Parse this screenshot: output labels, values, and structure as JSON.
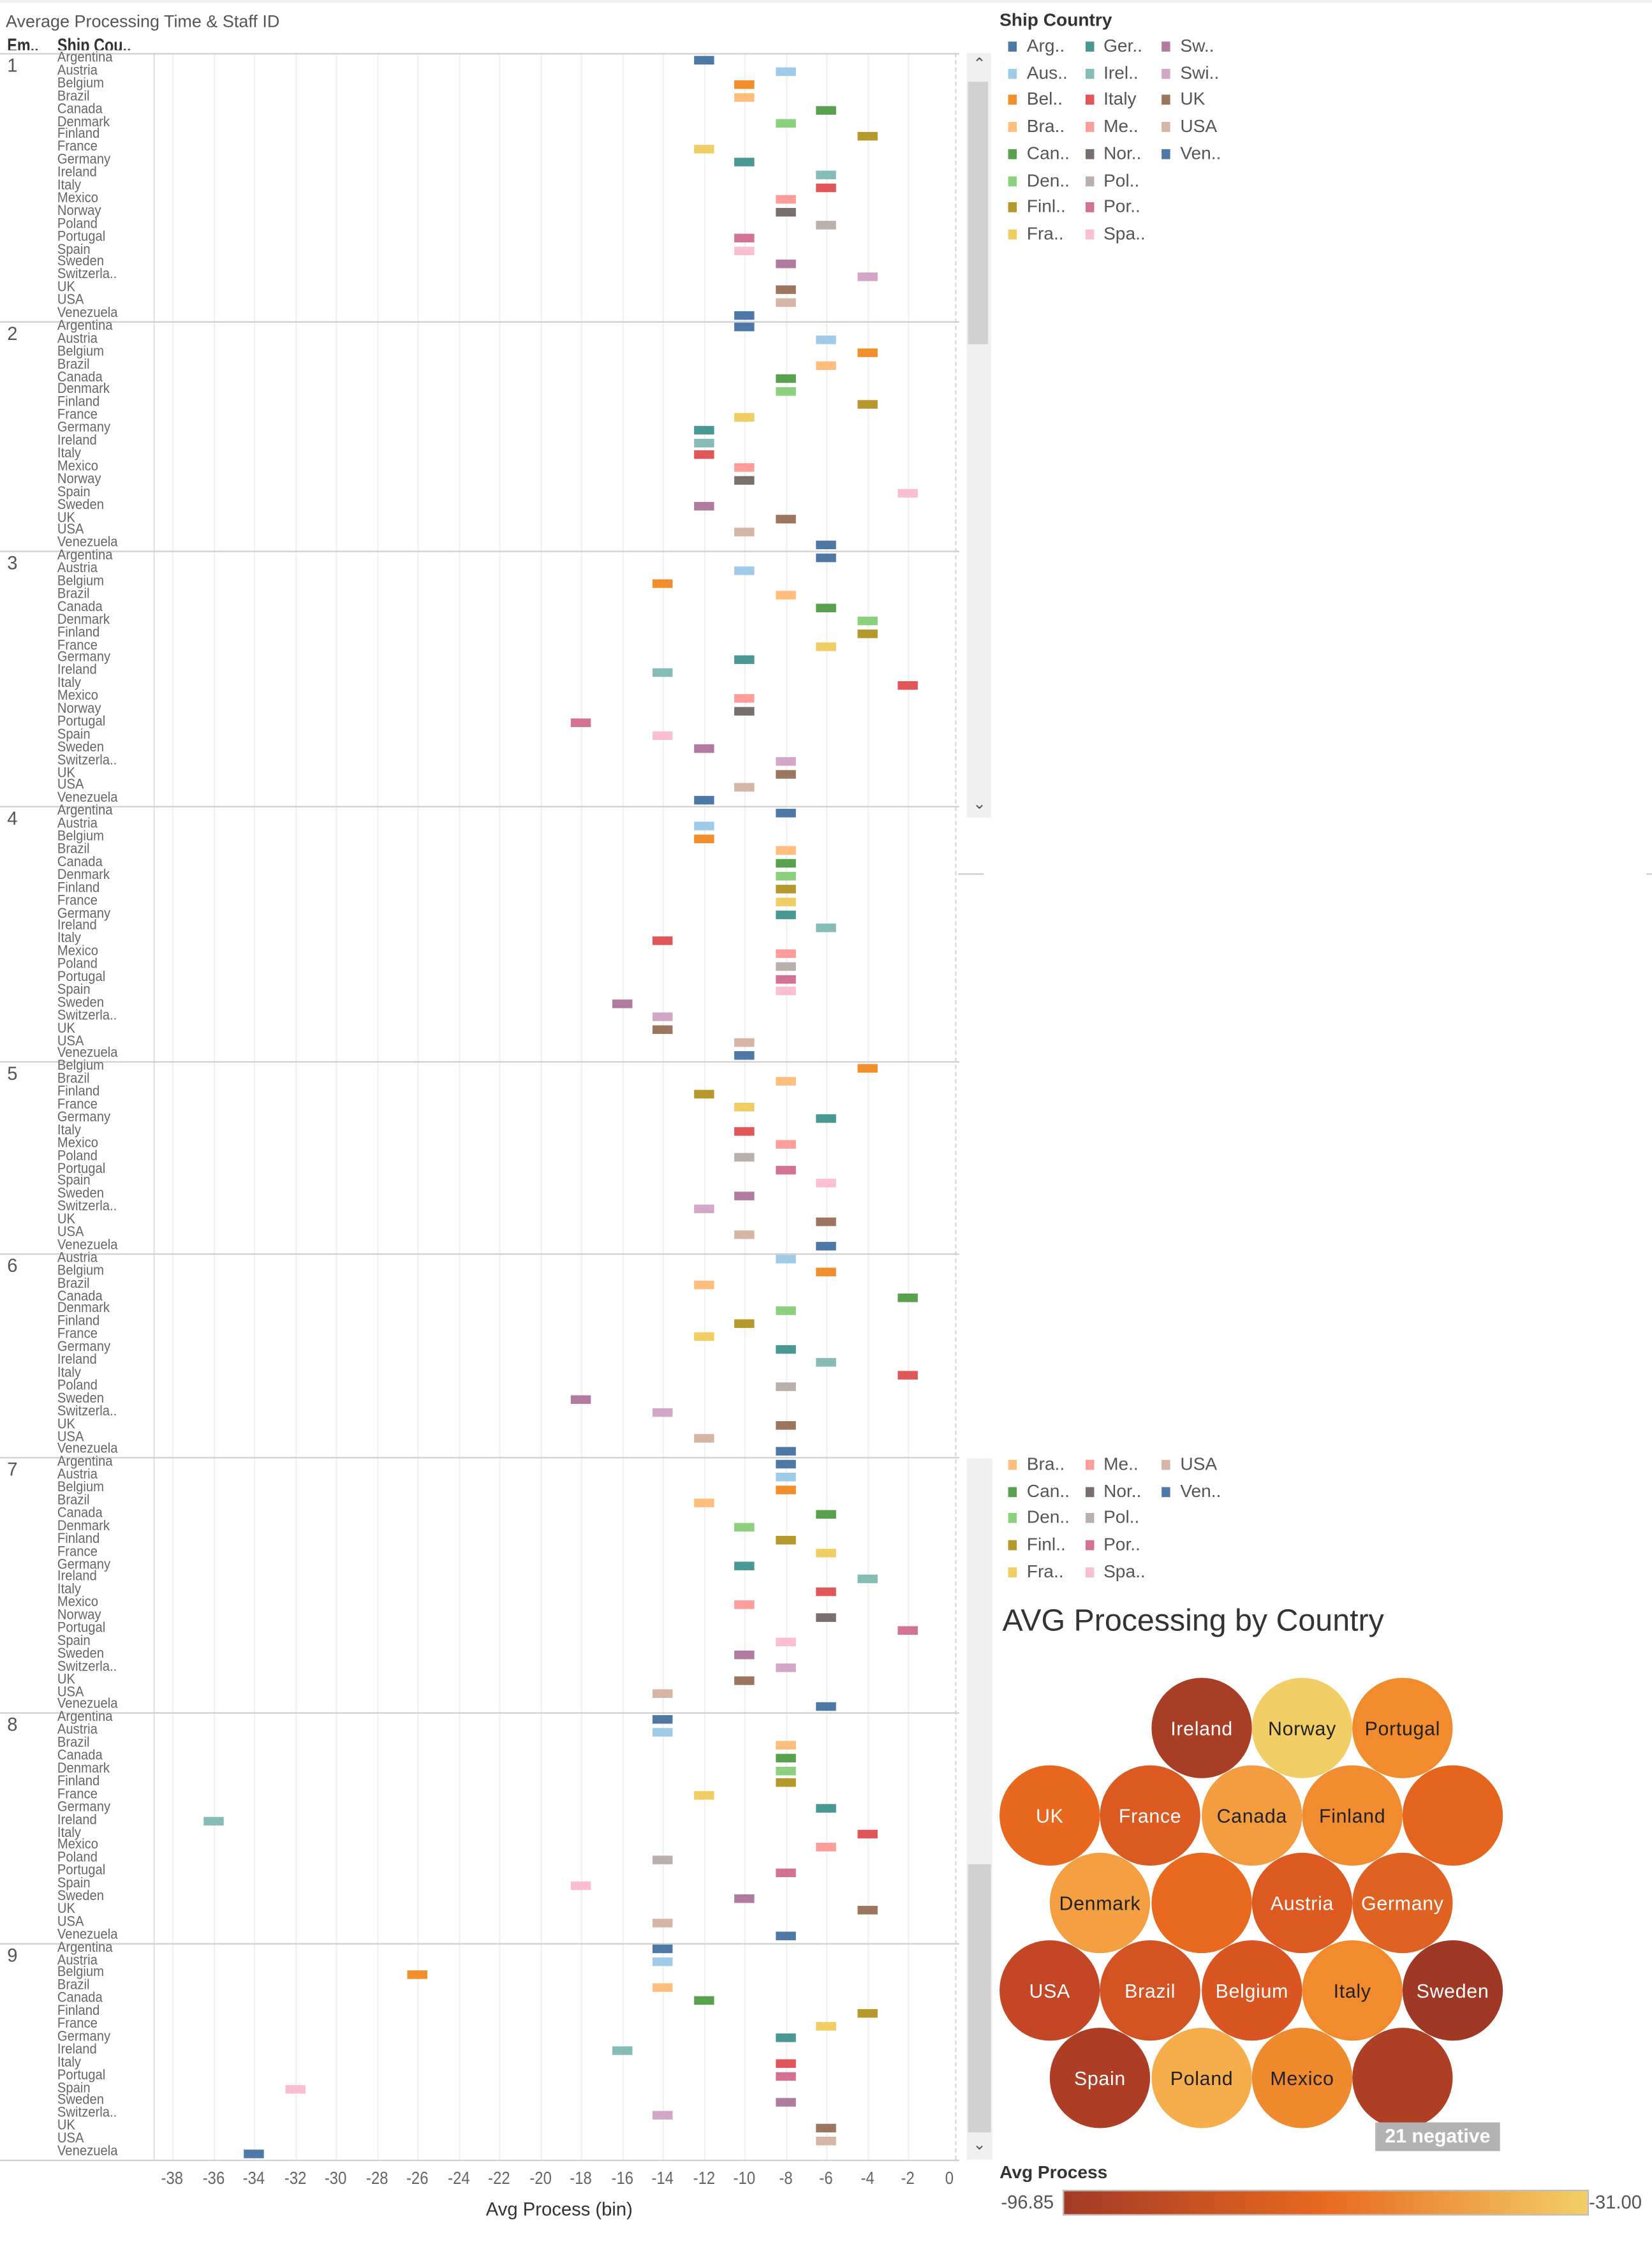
{
  "header": {
    "title": "Average Processing Time & Staff ID",
    "col_employee": "Em..",
    "col_country": "Ship Cou.."
  },
  "legend": {
    "title": "Ship Country",
    "items": [
      {
        "label": "Arg..",
        "color": "#4e79a7"
      },
      {
        "label": "Aus..",
        "color": "#a0cbe8"
      },
      {
        "label": "Bel..",
        "color": "#f28e2b"
      },
      {
        "label": "Bra..",
        "color": "#ffbe7d"
      },
      {
        "label": "Can..",
        "color": "#59a14f"
      },
      {
        "label": "Den..",
        "color": "#8cd17d"
      },
      {
        "label": "Finl..",
        "color": "#b6992d"
      },
      {
        "label": "Fra..",
        "color": "#f1ce63"
      },
      {
        "label": "Ger..",
        "color": "#499894"
      },
      {
        "label": "Irel..",
        "color": "#86bcb6"
      },
      {
        "label": "Italy",
        "color": "#e15759"
      },
      {
        "label": "Me..",
        "color": "#ff9d9a"
      },
      {
        "label": "Nor..",
        "color": "#79706e"
      },
      {
        "label": "Pol..",
        "color": "#bab0ac"
      },
      {
        "label": "Por..",
        "color": "#d37295"
      },
      {
        "label": "Spa..",
        "color": "#fabfd2"
      },
      {
        "label": "Sw..",
        "color": "#b07aa1"
      },
      {
        "label": "Swi..",
        "color": "#d4a6c8"
      },
      {
        "label": "UK",
        "color": "#9d7660"
      },
      {
        "label": "USA",
        "color": "#d7b5a6"
      },
      {
        "label": "Ven..",
        "color": "#4e79a7"
      }
    ]
  },
  "legend_partial": {
    "items": [
      {
        "label": "Bra..",
        "color": "#ffbe7d"
      },
      {
        "label": "Can..",
        "color": "#59a14f"
      },
      {
        "label": "Den..",
        "color": "#8cd17d"
      },
      {
        "label": "Finl..",
        "color": "#b6992d"
      },
      {
        "label": "Fra..",
        "color": "#f1ce63"
      },
      {
        "label": "Me..",
        "color": "#ff9d9a"
      },
      {
        "label": "Nor..",
        "color": "#79706e"
      },
      {
        "label": "Pol..",
        "color": "#bab0ac"
      },
      {
        "label": "Por..",
        "color": "#d37295"
      },
      {
        "label": "Spa..",
        "color": "#fabfd2"
      },
      {
        "label": "USA",
        "color": "#d7b5a6"
      },
      {
        "label": "Ven..",
        "color": "#4e79a7"
      }
    ]
  },
  "country_colors": {
    "Argentina": "#4e79a7",
    "Austria": "#a0cbe8",
    "Belgium": "#f28e2b",
    "Brazil": "#ffbe7d",
    "Canada": "#59a14f",
    "Denmark": "#8cd17d",
    "Finland": "#b6992d",
    "France": "#f1ce63",
    "Germany": "#499894",
    "Ireland": "#86bcb6",
    "Italy": "#e15759",
    "Mexico": "#ff9d9a",
    "Norway": "#79706e",
    "Poland": "#bab0ac",
    "Portugal": "#d37295",
    "Spain": "#fabfd2",
    "Sweden": "#b07aa1",
    "Switzerla..": "#d4a6c8",
    "UK": "#9d7660",
    "USA": "#d7b5a6",
    "Venezuela": "#4e79a7"
  },
  "chart_data": [
    {
      "type": "scatter",
      "title": "Average Processing Time & Staff ID",
      "xlabel": "Avg Process (bin)",
      "xlim": [
        -38,
        0
      ],
      "xticks": [
        "-38",
        "-36",
        "-34",
        "-32",
        "-30",
        "-28",
        "-26",
        "-24",
        "-22",
        "-20",
        "-18",
        "-16",
        "-14",
        "-12",
        "-10",
        "-8",
        "-6",
        "-4",
        "-2",
        "0"
      ],
      "grid": true,
      "rows_by": [
        "Employee",
        "Ship Country"
      ],
      "panels": [
        {
          "employee": "1",
          "rows": [
            [
              "Argentina",
              -12
            ],
            [
              "Austria",
              -8
            ],
            [
              "Belgium",
              -10
            ],
            [
              "Brazil",
              -10
            ],
            [
              "Canada",
              -6
            ],
            [
              "Denmark",
              -8
            ],
            [
              "Finland",
              -4
            ],
            [
              "France",
              -12
            ],
            [
              "Germany",
              -10
            ],
            [
              "Ireland",
              -6
            ],
            [
              "Italy",
              -6
            ],
            [
              "Mexico",
              -8
            ],
            [
              "Norway",
              -8
            ],
            [
              "Poland",
              -6
            ],
            [
              "Portugal",
              -10
            ],
            [
              "Spain",
              -10
            ],
            [
              "Sweden",
              -8
            ],
            [
              "Switzerla..",
              -4
            ],
            [
              "UK",
              -8
            ],
            [
              "USA",
              -8
            ],
            [
              "Venezuela",
              -10
            ]
          ]
        },
        {
          "employee": "2",
          "rows": [
            [
              "Argentina",
              -10
            ],
            [
              "Austria",
              -6
            ],
            [
              "Belgium",
              -4
            ],
            [
              "Brazil",
              -6
            ],
            [
              "Canada",
              -8
            ],
            [
              "Denmark",
              -8
            ],
            [
              "Finland",
              -4
            ],
            [
              "France",
              -10
            ],
            [
              "Germany",
              -12
            ],
            [
              "Ireland",
              -12
            ],
            [
              "Italy",
              -12
            ],
            [
              "Mexico",
              -10
            ],
            [
              "Norway",
              -10
            ],
            [
              "Spain",
              -2
            ],
            [
              "Sweden",
              -12
            ],
            [
              "UK",
              -8
            ],
            [
              "USA",
              -10
            ],
            [
              "Venezuela",
              -6
            ]
          ]
        },
        {
          "employee": "3",
          "rows": [
            [
              "Argentina",
              -6
            ],
            [
              "Austria",
              -10
            ],
            [
              "Belgium",
              -14
            ],
            [
              "Brazil",
              -8
            ],
            [
              "Canada",
              -6
            ],
            [
              "Denmark",
              -4
            ],
            [
              "Finland",
              -4
            ],
            [
              "France",
              -6
            ],
            [
              "Germany",
              -10
            ],
            [
              "Ireland",
              -14
            ],
            [
              "Italy",
              -2
            ],
            [
              "Mexico",
              -10
            ],
            [
              "Norway",
              -10
            ],
            [
              "Portugal",
              -18
            ],
            [
              "Spain",
              -14
            ],
            [
              "Sweden",
              -12
            ],
            [
              "Switzerla..",
              -8
            ],
            [
              "UK",
              -8
            ],
            [
              "USA",
              -10
            ],
            [
              "Venezuela",
              -12
            ]
          ]
        },
        {
          "employee": "4",
          "rows": [
            [
              "Argentina",
              -8
            ],
            [
              "Austria",
              -12
            ],
            [
              "Belgium",
              -12
            ],
            [
              "Brazil",
              -8
            ],
            [
              "Canada",
              -8
            ],
            [
              "Denmark",
              -8
            ],
            [
              "Finland",
              -8
            ],
            [
              "France",
              -8
            ],
            [
              "Germany",
              -8
            ],
            [
              "Ireland",
              -6
            ],
            [
              "Italy",
              -14
            ],
            [
              "Mexico",
              -8
            ],
            [
              "Poland",
              -8
            ],
            [
              "Portugal",
              -8
            ],
            [
              "Spain",
              -8
            ],
            [
              "Sweden",
              -16
            ],
            [
              "Switzerla..",
              -14
            ],
            [
              "UK",
              -14
            ],
            [
              "USA",
              -10
            ],
            [
              "Venezuela",
              -10
            ]
          ]
        },
        {
          "employee": "5",
          "rows": [
            [
              "Belgium",
              -4
            ],
            [
              "Brazil",
              -8
            ],
            [
              "Finland",
              -12
            ],
            [
              "France",
              -10
            ],
            [
              "Germany",
              -6
            ],
            [
              "Italy",
              -10
            ],
            [
              "Mexico",
              -8
            ],
            [
              "Poland",
              -10
            ],
            [
              "Portugal",
              -8
            ],
            [
              "Spain",
              -6
            ],
            [
              "Sweden",
              -10
            ],
            [
              "Switzerla..",
              -12
            ],
            [
              "UK",
              -6
            ],
            [
              "USA",
              -10
            ],
            [
              "Venezuela",
              -6
            ]
          ]
        },
        {
          "employee": "6",
          "rows": [
            [
              "Austria",
              -8
            ],
            [
              "Belgium",
              -6
            ],
            [
              "Brazil",
              -12
            ],
            [
              "Canada",
              -2
            ],
            [
              "Denmark",
              -8
            ],
            [
              "Finland",
              -10
            ],
            [
              "France",
              -12
            ],
            [
              "Germany",
              -8
            ],
            [
              "Ireland",
              -6
            ],
            [
              "Italy",
              -2
            ],
            [
              "Poland",
              -8
            ],
            [
              "Sweden",
              -18
            ],
            [
              "Switzerla..",
              -14
            ],
            [
              "UK",
              -8
            ],
            [
              "USA",
              -12
            ],
            [
              "Venezuela",
              -8
            ]
          ]
        },
        {
          "employee": "7",
          "rows": [
            [
              "Argentina",
              -8
            ],
            [
              "Austria",
              -8
            ],
            [
              "Belgium",
              -8
            ],
            [
              "Brazil",
              -12
            ],
            [
              "Canada",
              -6
            ],
            [
              "Denmark",
              -10
            ],
            [
              "Finland",
              -8
            ],
            [
              "France",
              -6
            ],
            [
              "Germany",
              -10
            ],
            [
              "Ireland",
              -4
            ],
            [
              "Italy",
              -6
            ],
            [
              "Mexico",
              -10
            ],
            [
              "Norway",
              -6
            ],
            [
              "Portugal",
              -2
            ],
            [
              "Spain",
              -8
            ],
            [
              "Sweden",
              -10
            ],
            [
              "Switzerla..",
              -8
            ],
            [
              "UK",
              -10
            ],
            [
              "USA",
              -14
            ],
            [
              "Venezuela",
              -6
            ]
          ]
        },
        {
          "employee": "8",
          "rows": [
            [
              "Argentina",
              -14
            ],
            [
              "Austria",
              -14
            ],
            [
              "Brazil",
              -8
            ],
            [
              "Canada",
              -8
            ],
            [
              "Denmark",
              -8
            ],
            [
              "Finland",
              -8
            ],
            [
              "France",
              -12
            ],
            [
              "Germany",
              -6
            ],
            [
              "Ireland",
              -36
            ],
            [
              "Italy",
              -4
            ],
            [
              "Mexico",
              -6
            ],
            [
              "Poland",
              -14
            ],
            [
              "Portugal",
              -8
            ],
            [
              "Spain",
              -18
            ],
            [
              "Sweden",
              -10
            ],
            [
              "UK",
              -4
            ],
            [
              "USA",
              -14
            ],
            [
              "Venezuela",
              -8
            ]
          ]
        },
        {
          "employee": "9",
          "rows": [
            [
              "Argentina",
              -14
            ],
            [
              "Austria",
              -14
            ],
            [
              "Belgium",
              -26
            ],
            [
              "Brazil",
              -14
            ],
            [
              "Canada",
              -12
            ],
            [
              "Finland",
              -4
            ],
            [
              "France",
              -6
            ],
            [
              "Germany",
              -8
            ],
            [
              "Ireland",
              -16
            ],
            [
              "Italy",
              -8
            ],
            [
              "Portugal",
              -8
            ],
            [
              "Spain",
              -32
            ],
            [
              "Sweden",
              -8
            ],
            [
              "Switzerla..",
              -14
            ],
            [
              "UK",
              -6
            ],
            [
              "USA",
              -6
            ],
            [
              "Venezuela",
              -34
            ]
          ]
        }
      ]
    },
    {
      "type": "bubble",
      "title": "AVG Processing by Country",
      "color_legend": {
        "title": "Avg Process",
        "min": "-96.85",
        "max": "-31.00",
        "colors": [
          "#a33a26",
          "#e86a1f",
          "#f3cf66"
        ]
      },
      "annotation": "21 negative",
      "bubbles": [
        {
          "label": "Ireland",
          "color": "#a93e26",
          "text": "light"
        },
        {
          "label": "Norway",
          "color": "#f2cf66",
          "text": "dark"
        },
        {
          "label": "Portugal",
          "color": "#f28a2e",
          "text": "dark"
        },
        {
          "label": "UK",
          "color": "#e8681f",
          "text": "light"
        },
        {
          "label": "France",
          "color": "#db5a22",
          "text": "light"
        },
        {
          "label": "Canada",
          "color": "#f49c40",
          "text": "dark"
        },
        {
          "label": "Finland",
          "color": "#f28c30",
          "text": "dark"
        },
        {
          "label": "",
          "color": "#e5651f",
          "text": "light"
        },
        {
          "label": "Denmark",
          "color": "#f49f42",
          "text": "dark"
        },
        {
          "label": "",
          "color": "#e96a1e",
          "text": "light"
        },
        {
          "label": "Austria",
          "color": "#dc5a22",
          "text": "light"
        },
        {
          "label": "Germany",
          "color": "#e06222",
          "text": "light"
        },
        {
          "label": "USA",
          "color": "#c34625",
          "text": "light"
        },
        {
          "label": "Brazil",
          "color": "#d45323",
          "text": "light"
        },
        {
          "label": "Belgium",
          "color": "#d95522",
          "text": "light"
        },
        {
          "label": "Italy",
          "color": "#f28b2e",
          "text": "dark"
        },
        {
          "label": "Sweden",
          "color": "#a03826",
          "text": "light"
        },
        {
          "label": "Spain",
          "color": "#ad3e25",
          "text": "light"
        },
        {
          "label": "Poland",
          "color": "#f6ae4d",
          "text": "dark"
        },
        {
          "label": "Mexico",
          "color": "#f08a2f",
          "text": "dark"
        },
        {
          "label": "",
          "color": "#ae3f25",
          "text": "light"
        }
      ]
    }
  ]
}
